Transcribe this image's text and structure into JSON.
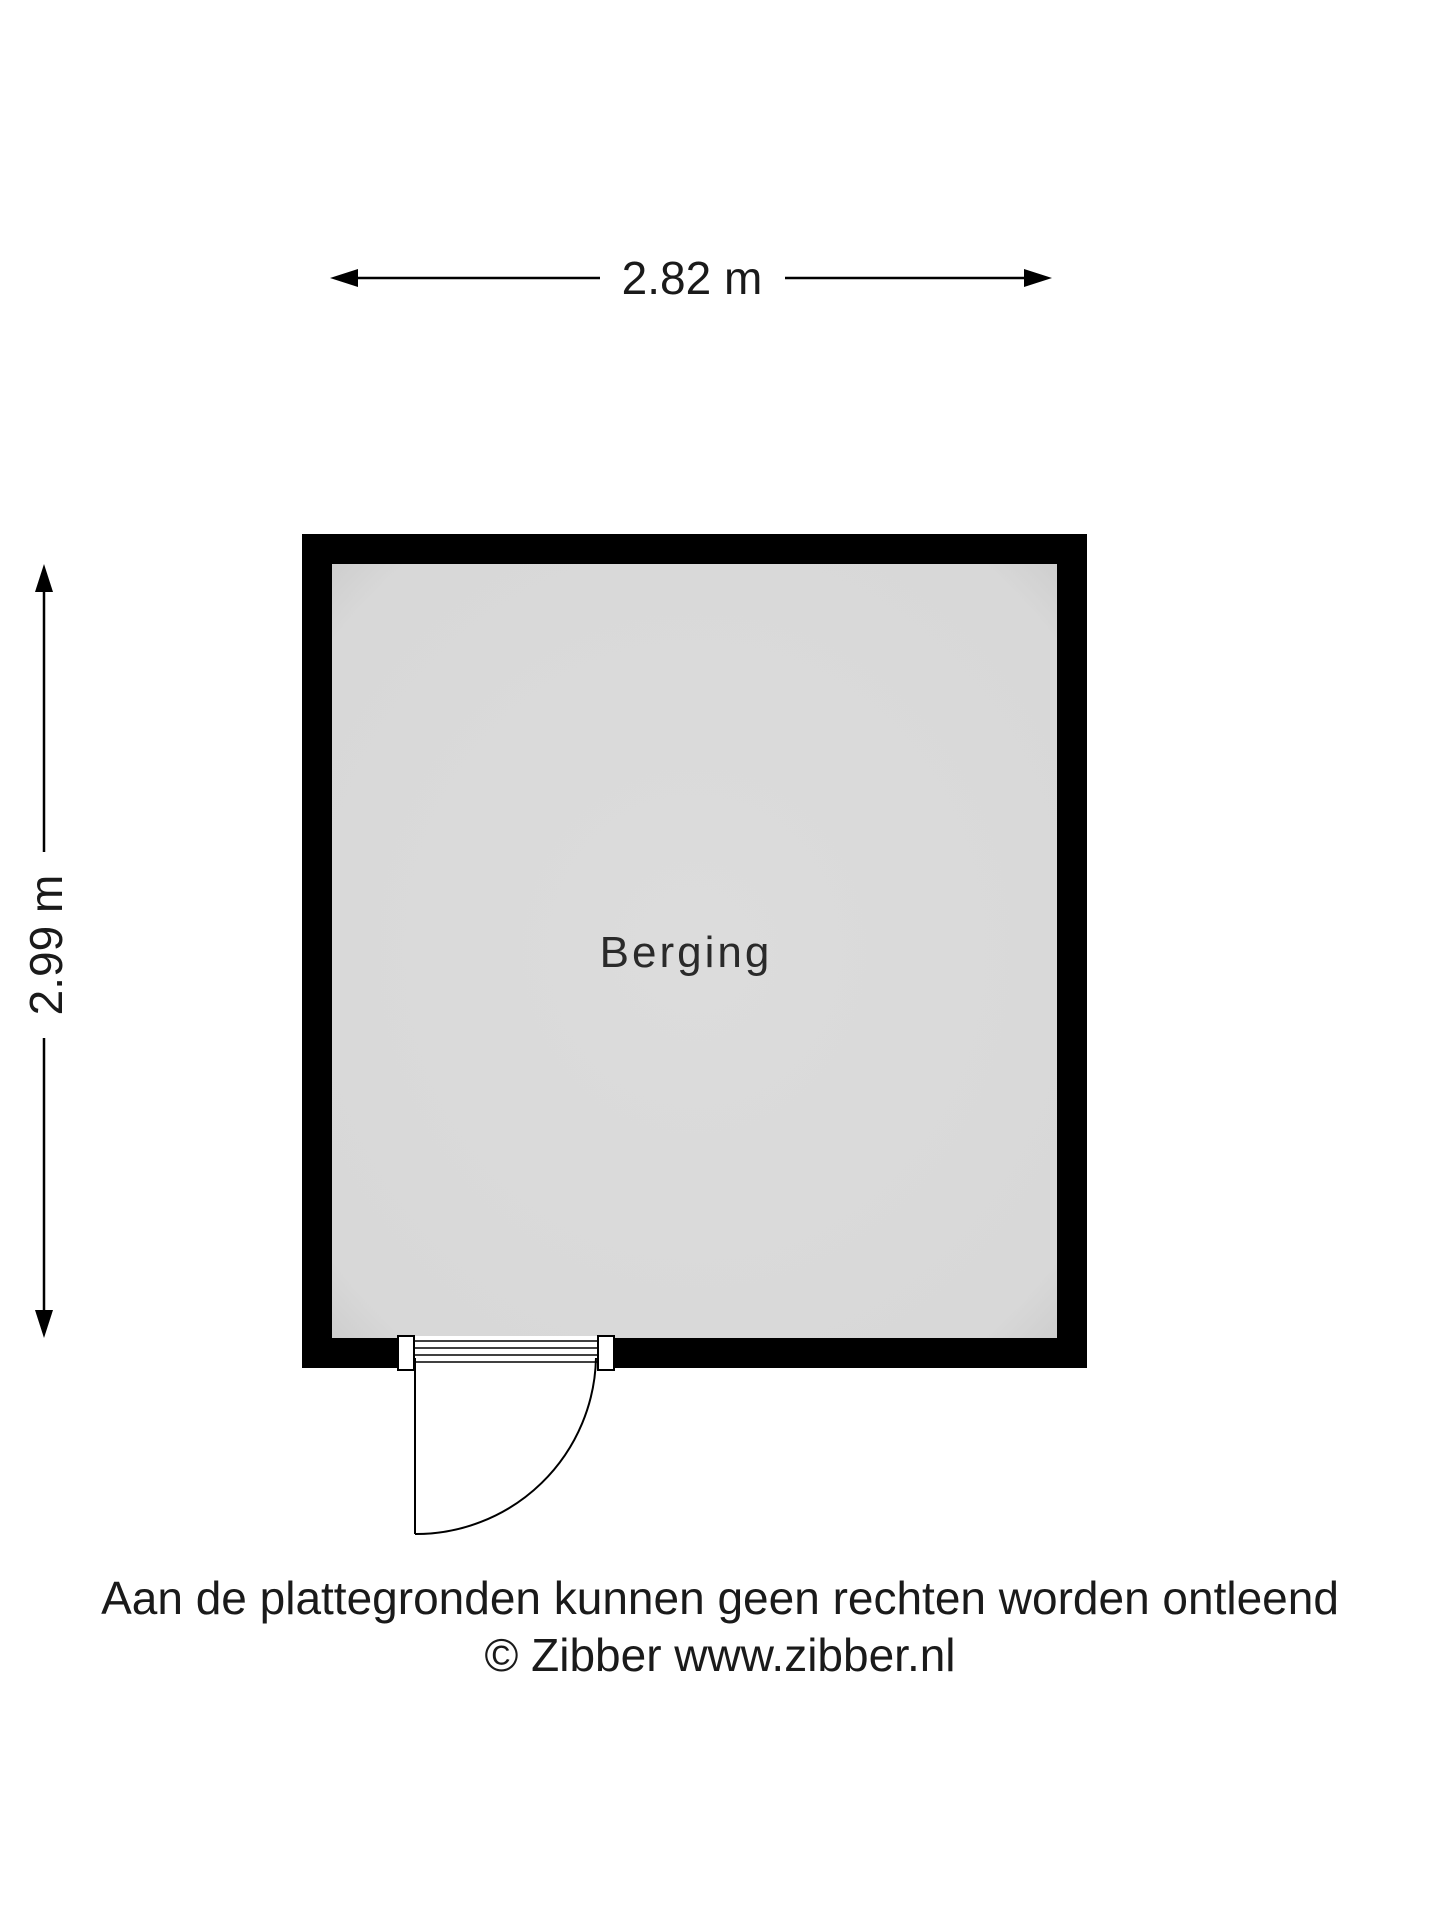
{
  "dimensions": {
    "width_label": "2.82 m",
    "height_label": "2.99 m"
  },
  "room": {
    "name": "Berging"
  },
  "footer": {
    "disclaimer": "Aan de plattegronden kunnen geen rechten worden ontleend",
    "copyright": "© Zibber www.zibber.nl"
  },
  "colors": {
    "wall": "#000000",
    "floor": "#dcdcdc",
    "background": "#ffffff"
  }
}
